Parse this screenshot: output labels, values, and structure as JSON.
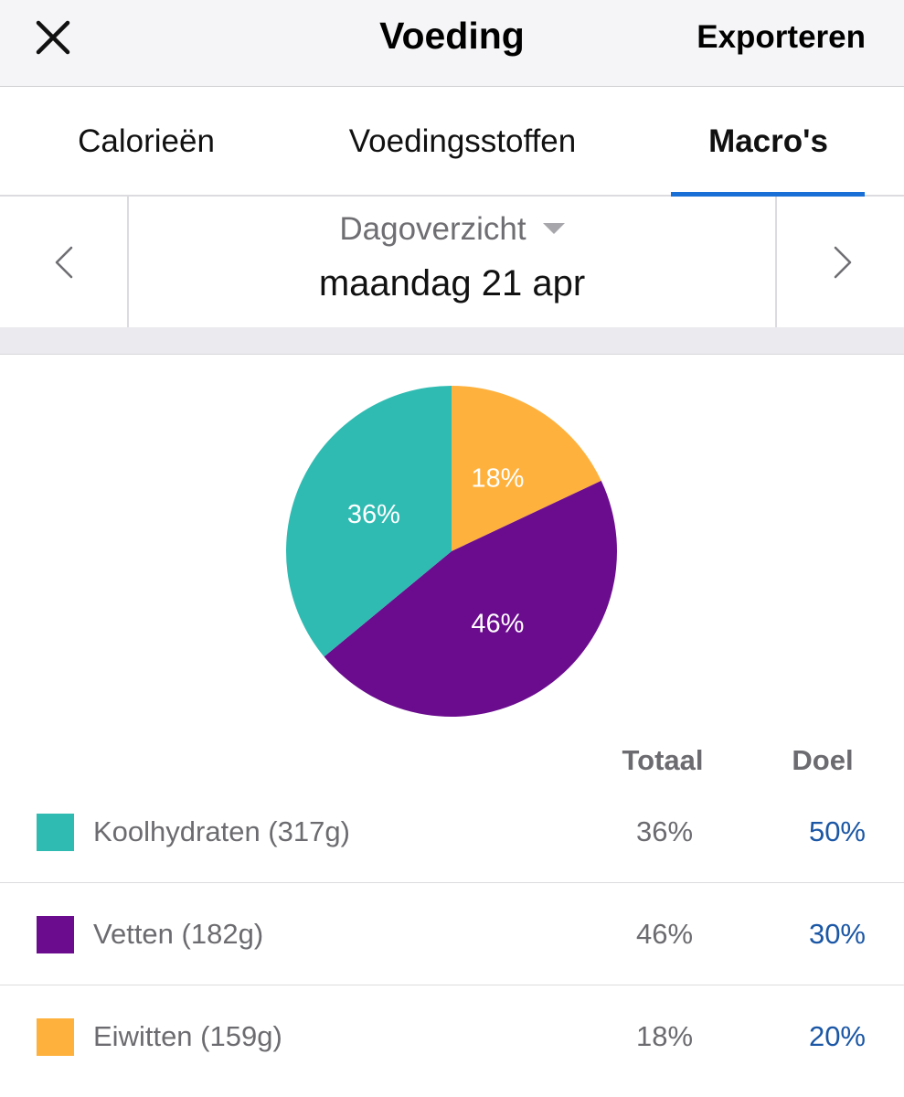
{
  "header": {
    "title": "Voeding",
    "export_label": "Exporteren",
    "close_icon": "close-icon"
  },
  "tabs": [
    {
      "label": "Calorieën",
      "active": false
    },
    {
      "label": "Voedingsstoffen",
      "active": false
    },
    {
      "label": "Macro's",
      "active": true
    }
  ],
  "date_selector": {
    "period": "Dagoverzicht",
    "date": "maandag 21 apr",
    "prev_icon": "chevron-left-icon",
    "next_icon": "chevron-right-icon",
    "dropdown_icon": "caret-down-icon"
  },
  "colors": {
    "accent": "#1a6fd6",
    "carbs": "#2fbbb2",
    "fat": "#6b0c8f",
    "protein": "#ffb13d",
    "goal_text": "#1b57a5"
  },
  "chart_data": {
    "type": "pie",
    "slices": [
      {
        "label": "Eiwitten",
        "value": 18,
        "display": "18%",
        "color": "#ffb13d"
      },
      {
        "label": "Vetten",
        "value": 46,
        "display": "46%",
        "color": "#6b0c8f"
      },
      {
        "label": "Koolhydraten",
        "value": 36,
        "display": "36%",
        "color": "#2fbbb2"
      }
    ]
  },
  "table": {
    "columns": {
      "total": "Totaal",
      "goal": "Doel"
    },
    "rows": [
      {
        "name": "Koolhydraten (317g)",
        "total": "36%",
        "goal": "50%",
        "color": "#2fbbb2"
      },
      {
        "name": "Vetten (182g)",
        "total": "46%",
        "goal": "30%",
        "color": "#6b0c8f"
      },
      {
        "name": "Eiwitten (159g)",
        "total": "18%",
        "goal": "20%",
        "color": "#ffb13d"
      }
    ]
  }
}
